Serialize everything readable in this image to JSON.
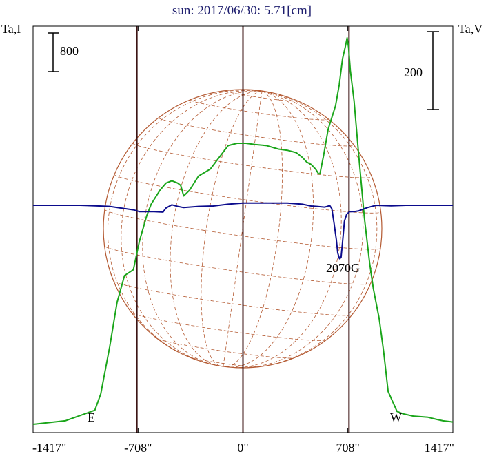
{
  "chart_data": {
    "type": "line",
    "title": "sun: 2017/06/30: 5.71[cm]",
    "left_axis_label": "Ta,I",
    "right_axis_label": "Ta,V",
    "left_scale_label": "800",
    "right_scale_label": "200",
    "x_ticks": [
      {
        "value": -1417,
        "label": "-1417\""
      },
      {
        "value": -708,
        "label": "-708\""
      },
      {
        "value": 0,
        "label": "0\""
      },
      {
        "value": 708,
        "label": "708\""
      },
      {
        "value": 1417,
        "label": "1417\""
      }
    ],
    "xlim": [
      -1417,
      1417
    ],
    "limb_markers": [
      {
        "value": -716,
        "label": "E"
      },
      {
        "value": 716,
        "label": "W"
      }
    ],
    "annotations": [
      {
        "text": "2070G",
        "x": 708
      }
    ],
    "solar_disk": {
      "radius_arcsec": 716,
      "color": "#b45a32"
    },
    "series": [
      {
        "quantity": "I",
        "color": "#1aa51a",
        "points": [
          [
            -1417,
            0
          ],
          [
            -1200,
            15
          ],
          [
            -1000,
            60
          ],
          [
            -960,
            130
          ],
          [
            -900,
            330
          ],
          [
            -850,
            520
          ],
          [
            -800,
            635
          ],
          [
            -740,
            660
          ],
          [
            -700,
            780
          ],
          [
            -650,
            890
          ],
          [
            -620,
            940
          ],
          [
            -560,
            1000
          ],
          [
            -520,
            1030
          ],
          [
            -480,
            1040
          ],
          [
            -440,
            1030
          ],
          [
            -420,
            1020
          ],
          [
            -400,
            975
          ],
          [
            -360,
            1000
          ],
          [
            -300,
            1060
          ],
          [
            -220,
            1090
          ],
          [
            -160,
            1140
          ],
          [
            -100,
            1190
          ],
          [
            -40,
            1200
          ],
          [
            20,
            1200
          ],
          [
            80,
            1195
          ],
          [
            160,
            1190
          ],
          [
            240,
            1175
          ],
          [
            300,
            1170
          ],
          [
            360,
            1160
          ],
          [
            400,
            1140
          ],
          [
            430,
            1120
          ],
          [
            460,
            1110
          ],
          [
            490,
            1090
          ],
          [
            510,
            1070
          ],
          [
            520,
            1070
          ],
          [
            545,
            1150
          ],
          [
            575,
            1260
          ],
          [
            600,
            1310
          ],
          [
            625,
            1360
          ],
          [
            650,
            1450
          ],
          [
            672,
            1560
          ],
          [
            690,
            1610
          ],
          [
            703,
            1650
          ],
          [
            713,
            1610
          ],
          [
            725,
            1510
          ],
          [
            750,
            1380
          ],
          [
            780,
            1160
          ],
          [
            820,
            880
          ],
          [
            855,
            690
          ],
          [
            880,
            580
          ],
          [
            920,
            450
          ],
          [
            950,
            310
          ],
          [
            980,
            140
          ],
          [
            1040,
            55
          ],
          [
            1080,
            45
          ],
          [
            1150,
            35
          ],
          [
            1250,
            30
          ],
          [
            1300,
            22
          ],
          [
            1350,
            15
          ],
          [
            1417,
            10
          ]
        ]
      },
      {
        "quantity": "V",
        "color": "#0b0b8c",
        "points": [
          [
            -1417,
            0
          ],
          [
            -1100,
            0
          ],
          [
            -1000,
            -2
          ],
          [
            -900,
            -5
          ],
          [
            -740,
            -20
          ],
          [
            -700,
            -28
          ],
          [
            -600,
            -28
          ],
          [
            -540,
            -30
          ],
          [
            -520,
            -12
          ],
          [
            -500,
            -5
          ],
          [
            -480,
            2
          ],
          [
            -440,
            -5
          ],
          [
            -400,
            -10
          ],
          [
            -300,
            -5
          ],
          [
            -200,
            -3
          ],
          [
            -100,
            5
          ],
          [
            0,
            10
          ],
          [
            100,
            10
          ],
          [
            200,
            10
          ],
          [
            300,
            10
          ],
          [
            400,
            5
          ],
          [
            460,
            -3
          ],
          [
            500,
            -5
          ],
          [
            550,
            -8
          ],
          [
            570,
            -5
          ],
          [
            585,
            0
          ],
          [
            600,
            -15
          ],
          [
            615,
            -80
          ],
          [
            630,
            -150
          ],
          [
            640,
            -210
          ],
          [
            652,
            -235
          ],
          [
            662,
            -230
          ],
          [
            672,
            -165
          ],
          [
            685,
            -70
          ],
          [
            700,
            -40
          ],
          [
            720,
            -28
          ],
          [
            750,
            -28
          ],
          [
            780,
            -25
          ],
          [
            800,
            -20
          ],
          [
            840,
            -10
          ],
          [
            900,
            0
          ],
          [
            1000,
            -2
          ],
          [
            1100,
            0
          ],
          [
            1417,
            0
          ]
        ]
      }
    ],
    "grid": "heliographic meridians and parallels on the solar disk"
  }
}
